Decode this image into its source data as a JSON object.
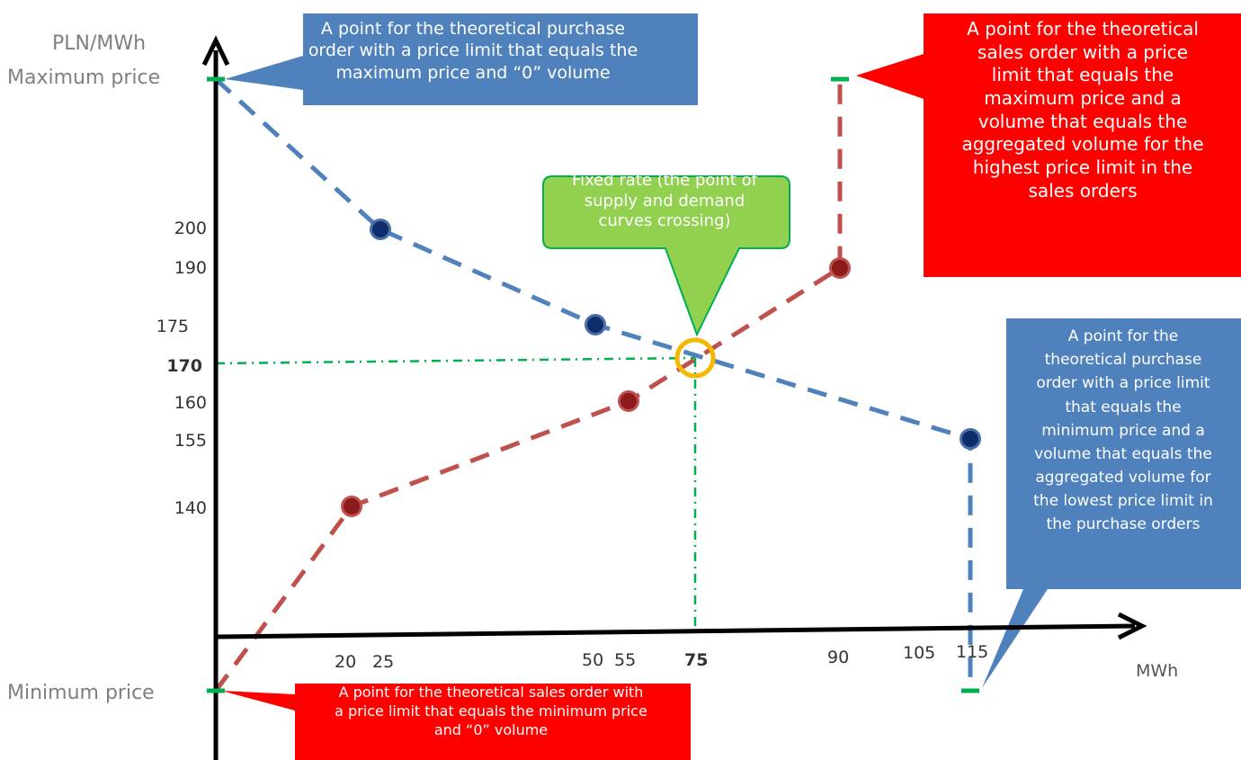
{
  "chart_data": {
    "type": "line",
    "ylabel": "PLN/MWh",
    "xlabel": "MWh",
    "y_special_labels": {
      "max": "Maximum price",
      "min": "Minimum price"
    },
    "y_ticks": [
      "200",
      "190",
      "175",
      "170",
      "160",
      "155",
      "140"
    ],
    "y_bold_tick": "170",
    "x_ticks": [
      "20",
      "25",
      "50",
      "55",
      "75",
      "90",
      "105",
      "115"
    ],
    "x_bold_tick": "75",
    "series": [
      {
        "role": "purchase",
        "color": "#4f81bd",
        "point_color": "#0f2d6b",
        "points": [
          {
            "x": 25,
            "y": "200"
          },
          {
            "x": 50,
            "y": "175"
          },
          {
            "x": 115,
            "y": "155"
          }
        ],
        "extremes": [
          {
            "x": 0,
            "y": "Maximum price"
          },
          {
            "x": 115,
            "y": "Minimum price"
          }
        ]
      },
      {
        "role": "sales",
        "color": "#c0504d",
        "point_color": "#8b1a1a",
        "points": [
          {
            "x": 20,
            "y": "140"
          },
          {
            "x": 55,
            "y": "160"
          },
          {
            "x": 90,
            "y": "190"
          }
        ],
        "extremes": [
          {
            "x": 0,
            "y": "Minimum price"
          },
          {
            "x": 90,
            "y": "Maximum price"
          }
        ]
      }
    ],
    "equilibrium": {
      "x": 75,
      "y": "170",
      "ring_color": "#f5b800",
      "guide_color": "#00b050"
    },
    "extreme_marker_color": "#00b050",
    "annotations": [
      {
        "id": "buy-max",
        "fill": "#4f81bd",
        "lines": [
          "A point for the theoretical purchase",
          "order with a price limit that equals the",
          "maximum price and “0” volume"
        ]
      },
      {
        "id": "sell-max",
        "fill": "#ff0000",
        "lines": [
          "A point for the theoretical",
          "sales order with a price",
          "limit that equals the",
          "maximum price and a",
          "volume that equals the",
          "aggregated volume for the",
          "highest price limit in the",
          "sales orders"
        ]
      },
      {
        "id": "fixed-rate",
        "fill": "#92d050",
        "lines": [
          "Fixed rate (the point of",
          "supply and demand",
          "curves crossing)"
        ]
      },
      {
        "id": "buy-min",
        "fill": "#4f81bd",
        "lines": [
          "A point for the",
          "theoretical purchase",
          "order with a price limit",
          "that equals the",
          "minimum price and a",
          "volume that equals the",
          "aggregated volume for",
          "the lowest price limit in",
          "the purchase orders"
        ]
      },
      {
        "id": "sell-min",
        "fill": "#ff0000",
        "lines": [
          "A point for the theoretical sales order with",
          "a price limit that equals the minimum price",
          "and “0” volume"
        ]
      }
    ]
  }
}
